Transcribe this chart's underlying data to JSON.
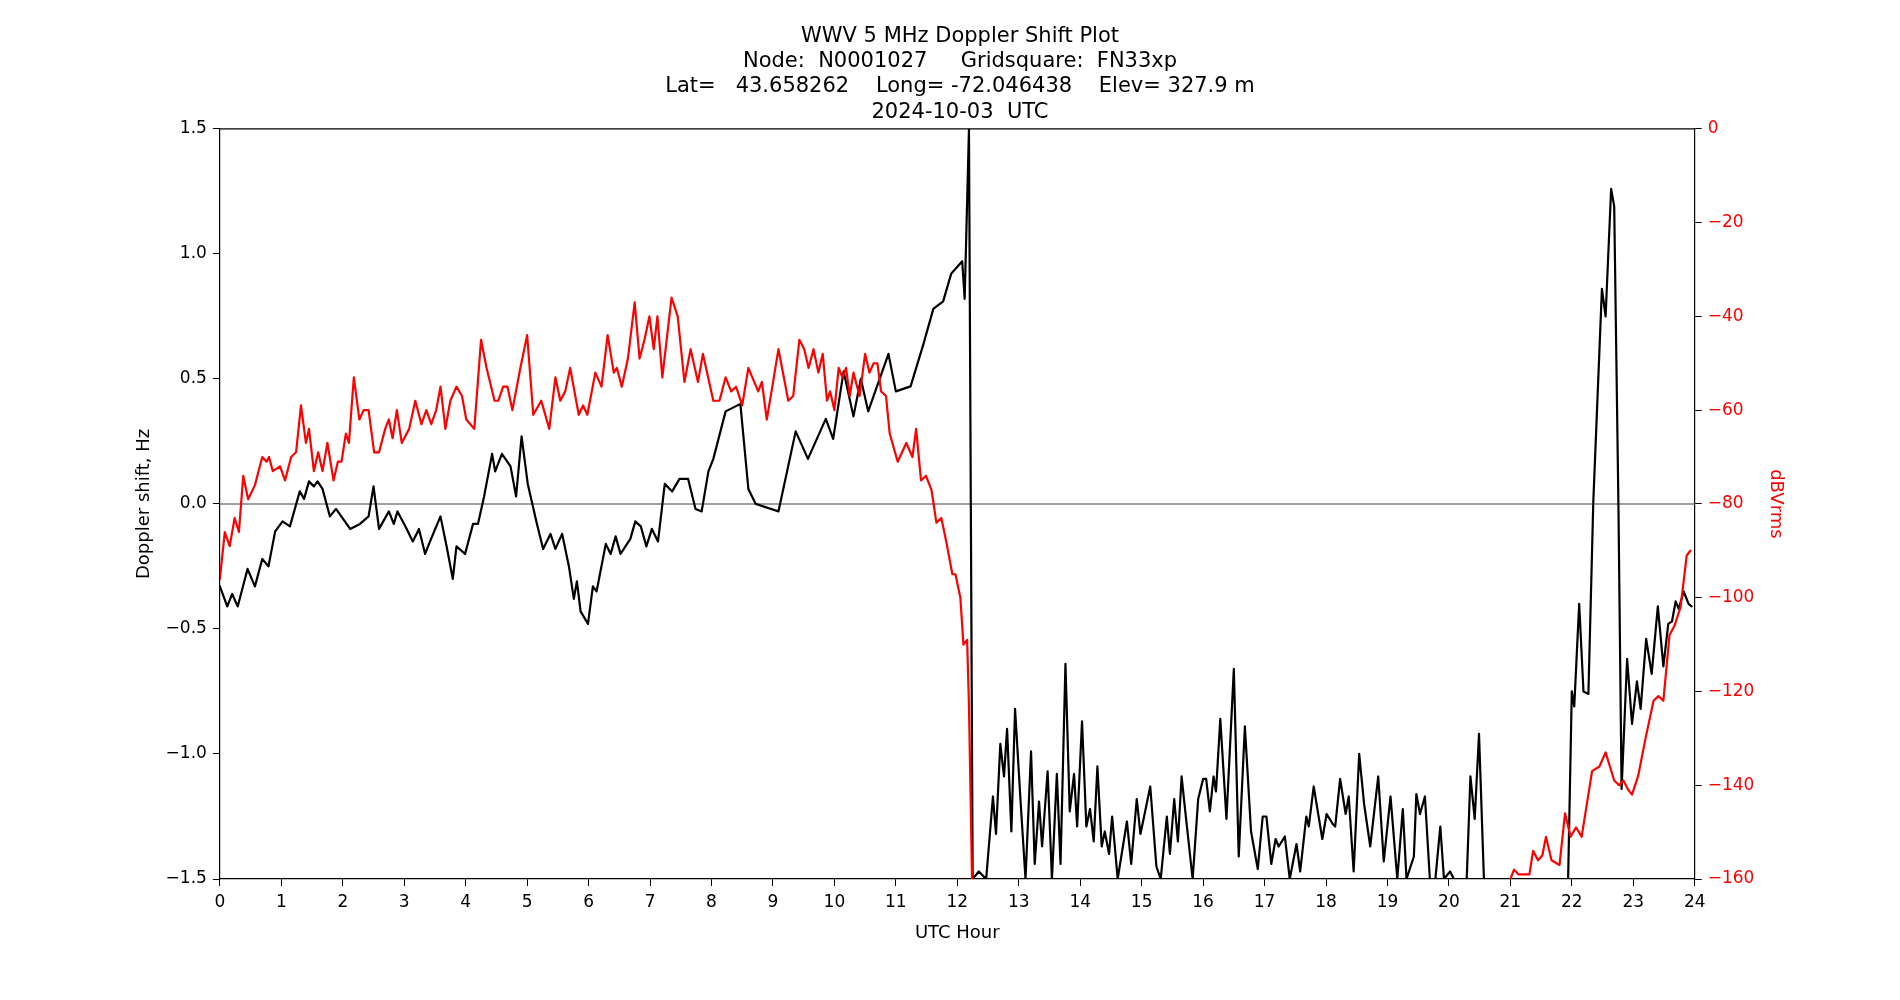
{
  "chart_data": {
    "type": "line",
    "title": "WWV 5 MHz Doppler Shift Plot",
    "subtitle": "Node:  N0001027     Gridsquare:  FN33xp\nLat=   43.658262    Long= -72.046438    Elev= 327.9 m\n2024-10-03  UTC",
    "xlabel": "UTC Hour",
    "ylabel": "Doppler shift, Hz",
    "y2label": "dBVrms",
    "xlim": [
      0,
      24
    ],
    "xticks": [
      0,
      1,
      2,
      3,
      4,
      5,
      6,
      7,
      8,
      9,
      10,
      11,
      12,
      13,
      14,
      15,
      16,
      17,
      18,
      19,
      20,
      21,
      22,
      23,
      24
    ],
    "ylim": [
      -1.5,
      1.5
    ],
    "yticks": [
      {
        "value": -1.5,
        "label": "−1.5"
      },
      {
        "value": -1,
        "label": "−1.0"
      },
      {
        "value": -0.5,
        "label": "−0.5"
      },
      {
        "value": 0,
        "label": "0.0"
      },
      0.5,
      {
        "value": 1,
        "label": "1.0"
      },
      1.5
    ],
    "y2lim": [
      -160,
      0
    ],
    "y2ticks": [
      {
        "value": -160,
        "label": "−160"
      },
      {
        "value": -140,
        "label": "−140"
      },
      {
        "value": -120,
        "label": "−120"
      },
      {
        "value": -100,
        "label": "−100"
      },
      {
        "value": -80,
        "label": "−80"
      },
      {
        "value": -60,
        "label": "−60"
      },
      {
        "value": -40,
        "label": "−40"
      },
      {
        "value": -20,
        "label": "−20"
      },
      0
    ],
    "grid": false,
    "legend": false,
    "marker": "none",
    "line_style": "solid",
    "ref_lines": [
      {
        "axis": "y",
        "value": 0,
        "color": "#808080"
      }
    ],
    "series": [
      {
        "color": "#ff0000",
        "axis": "y2",
        "x": [
          0,
          0.08,
          0.16,
          0.24,
          0.31,
          0.38,
          0.46,
          0.57,
          0.69,
          0.76,
          0.8,
          0.86,
          0.98,
          1.06,
          1.16,
          1.24,
          1.32,
          1.4,
          1.45,
          1.53,
          1.6,
          1.67,
          1.75,
          1.85,
          1.92,
          1.98,
          2.05,
          2.1,
          2.18,
          2.27,
          2.34,
          2.42,
          2.51,
          2.59,
          2.69,
          2.75,
          2.81,
          2.88,
          2.96,
          3.08,
          3.18,
          3.28,
          3.36,
          3.44,
          3.52,
          3.59,
          3.67,
          3.75,
          3.85,
          3.94,
          4.01,
          4.14,
          4.25,
          4.34,
          4.47,
          4.53,
          4.61,
          4.68,
          4.76,
          4.89,
          5.0,
          5.1,
          5.23,
          5.36,
          5.46,
          5.54,
          5.62,
          5.7,
          5.84,
          5.91,
          5.98,
          6.11,
          6.21,
          6.31,
          6.41,
          6.46,
          6.54,
          6.64,
          6.75,
          6.83,
          6.91,
          6.99,
          7.06,
          7.12,
          7.2,
          7.35,
          7.45,
          7.56,
          7.66,
          7.78,
          7.86,
          8.03,
          8.13,
          8.23,
          8.32,
          8.4,
          8.5,
          8.6,
          8.76,
          8.82,
          8.9,
          8.99,
          9.09,
          9.25,
          9.33,
          9.43,
          9.51,
          9.58,
          9.66,
          9.74,
          9.81,
          9.88,
          9.93,
          10.0,
          10.07,
          10.13,
          10.19,
          10.25,
          10.31,
          10.41,
          10.5,
          10.57,
          10.64,
          10.7,
          10.76,
          10.84,
          10.9,
          11.03,
          11.17,
          11.27,
          11.33,
          11.41,
          11.49,
          11.58,
          11.66,
          11.74,
          11.82,
          11.92,
          11.97,
          12.05,
          12.1,
          12.16,
          12.19,
          12.24,
          16.0,
          21.0,
          21.06,
          21.13,
          21.21,
          21.31,
          21.37,
          21.45,
          21.52,
          21.58,
          21.67,
          21.8,
          21.89,
          21.98,
          22.07,
          22.16,
          22.33,
          22.45,
          22.55,
          22.69,
          22.77,
          22.84,
          22.92,
          22.98,
          23.08,
          23.2,
          23.33,
          23.41,
          23.49,
          23.59,
          23.67,
          23.77,
          23.87,
          23.93
        ],
        "values": [
          -96,
          -86,
          -89,
          -83,
          -86,
          -74,
          -79,
          -76,
          -70,
          -71,
          -70,
          -73,
          -72,
          -75,
          -70,
          -69,
          -59,
          -67,
          -64,
          -73,
          -69,
          -73,
          -67,
          -75,
          -71,
          -71,
          -65,
          -67,
          -53,
          -62,
          -60,
          -60,
          -69,
          -69,
          -64,
          -62,
          -66,
          -60,
          -67,
          -64,
          -58,
          -63,
          -60,
          -63,
          -60,
          -55,
          -64,
          -58,
          -55,
          -57,
          -62,
          -64,
          -45,
          -51,
          -58,
          -58,
          -55,
          -55,
          -60,
          -51,
          -44,
          -61,
          -58,
          -64,
          -53,
          -58,
          -56,
          -51,
          -61,
          -59,
          -61,
          -52,
          -55,
          -44,
          -52,
          -51,
          -55,
          -49,
          -37,
          -49,
          -45,
          -40,
          -47,
          -40,
          -53,
          -36,
          -40,
          -54,
          -47,
          -54,
          -48,
          -58,
          -58,
          -53,
          -56,
          -55,
          -59,
          -51,
          -56,
          -54,
          -62,
          -55,
          -47,
          -58,
          -57,
          -45,
          -47,
          -51,
          -47,
          -52,
          -48,
          -58,
          -56,
          -60,
          -51,
          -53,
          -51,
          -57,
          -52,
          -57,
          -48,
          -52,
          -50,
          -50,
          -56,
          -57,
          -65,
          -71,
          -67,
          -70,
          -64,
          -75,
          -74,
          -77,
          -84,
          -83,
          -88,
          -95,
          -95,
          -100,
          -110,
          -109,
          -123,
          -160,
          null,
          -160,
          -158,
          -159,
          -159,
          -159,
          -154,
          -156,
          -155,
          -151,
          -156,
          -157,
          -146,
          -151,
          -149,
          -151,
          -137,
          -136,
          -133,
          -139,
          -140,
          -139,
          -141,
          -142,
          -138,
          -130,
          -122,
          -121,
          -122,
          -108,
          -106,
          -102,
          -91,
          -90
        ]
      },
      {
        "color": "#000000",
        "axis": "y",
        "x": [
          0,
          0.12,
          0.2,
          0.29,
          0.45,
          0.57,
          0.69,
          0.79,
          0.9,
          1.02,
          1.14,
          1.3,
          1.37,
          1.45,
          1.53,
          1.59,
          1.67,
          1.79,
          1.89,
          2.12,
          2.28,
          2.42,
          2.5,
          2.59,
          2.75,
          2.83,
          2.89,
          3.02,
          3.14,
          3.24,
          3.34,
          3.42,
          3.59,
          3.69,
          3.79,
          3.85,
          3.99,
          4.12,
          4.2,
          4.3,
          4.43,
          4.48,
          4.59,
          4.73,
          4.82,
          4.91,
          5.01,
          5.15,
          5.26,
          5.38,
          5.46,
          5.57,
          5.68,
          5.76,
          5.81,
          5.87,
          5.99,
          6.07,
          6.13,
          6.28,
          6.36,
          6.44,
          6.52,
          6.68,
          6.76,
          6.85,
          6.94,
          7.03,
          7.13,
          7.24,
          7.36,
          7.48,
          7.62,
          7.74,
          7.84,
          7.95,
          8.03,
          8.23,
          8.47,
          8.6,
          8.72,
          9.09,
          9.37,
          9.57,
          9.86,
          9.98,
          10.15,
          10.31,
          10.43,
          10.55,
          10.88,
          11.0,
          11.24,
          11.45,
          11.61,
          11.77,
          11.9,
          12.08,
          12.12,
          12.19,
          12.25,
          12.35,
          12.47,
          12.58,
          12.63,
          12.7,
          12.76,
          12.81,
          12.88,
          12.94,
          13.03,
          13.11,
          13.2,
          13.26,
          13.33,
          13.38,
          13.47,
          13.54,
          13.62,
          13.68,
          13.76,
          13.83,
          13.9,
          13.95,
          14.03,
          14.1,
          14.16,
          14.22,
          14.28,
          14.35,
          14.4,
          14.47,
          14.52,
          14.61,
          14.76,
          14.83,
          14.92,
          14.98,
          15.04,
          15.14,
          15.24,
          15.31,
          15.41,
          15.46,
          15.53,
          15.59,
          15.65,
          15.71,
          15.83,
          15.92,
          16.0,
          16.05,
          16.11,
          16.17,
          16.21,
          16.28,
          16.38,
          16.5,
          16.58,
          16.68,
          16.78,
          16.89,
          16.97,
          17.03,
          17.11,
          17.18,
          17.23,
          17.33,
          17.41,
          17.52,
          17.58,
          17.68,
          17.72,
          17.8,
          17.94,
          18.01,
          18.11,
          18.15,
          18.23,
          18.32,
          18.37,
          18.45,
          18.54,
          18.62,
          18.72,
          18.85,
          18.94,
          19.05,
          19.16,
          19.25,
          19.31,
          19.43,
          19.47,
          19.53,
          19.61,
          19.69,
          19.78,
          19.86,
          19.92,
          20.02,
          20.08,
          20.29,
          20.35,
          20.42,
          20.49,
          20.57,
          21.94,
          22.0,
          22.04,
          22.12,
          22.19,
          22.27,
          22.35,
          22.49,
          22.55,
          22.64,
          22.69,
          22.76,
          22.81,
          22.9,
          22.98,
          23.06,
          23.12,
          23.21,
          23.3,
          23.4,
          23.49,
          23.57,
          23.63,
          23.69,
          23.74,
          23.82,
          23.9,
          23.95
        ],
        "values": [
          -0.33,
          -0.41,
          -0.36,
          -0.41,
          -0.26,
          -0.33,
          -0.22,
          -0.25,
          -0.11,
          -0.07,
          -0.09,
          0.05,
          0.02,
          0.09,
          0.07,
          0.09,
          0.06,
          -0.05,
          -0.02,
          -0.1,
          -0.08,
          -0.05,
          0.07,
          -0.1,
          -0.03,
          -0.08,
          -0.03,
          -0.09,
          -0.15,
          -0.1,
          -0.2,
          -0.15,
          -0.05,
          -0.17,
          -0.3,
          -0.17,
          -0.2,
          -0.08,
          -0.08,
          0.03,
          0.2,
          0.13,
          0.2,
          0.15,
          0.03,
          0.27,
          0.08,
          -0.07,
          -0.18,
          -0.12,
          -0.18,
          -0.12,
          -0.25,
          -0.38,
          -0.31,
          -0.43,
          -0.48,
          -0.33,
          -0.35,
          -0.16,
          -0.2,
          -0.13,
          -0.2,
          -0.14,
          -0.07,
          -0.09,
          -0.17,
          -0.1,
          -0.15,
          0.08,
          0.05,
          0.1,
          0.1,
          -0.02,
          -0.03,
          0.13,
          0.18,
          0.37,
          0.4,
          0.06,
          0.0,
          -0.03,
          0.29,
          0.18,
          0.34,
          0.26,
          0.53,
          0.35,
          0.5,
          0.37,
          0.6,
          0.45,
          0.47,
          0.64,
          0.78,
          0.81,
          0.92,
          0.97,
          0.82,
          1.5,
          -1.5,
          -1.47,
          -1.5,
          -1.17,
          -1.32,
          -0.96,
          -1.09,
          -0.9,
          -1.31,
          -0.82,
          -1.19,
          -1.5,
          -0.99,
          -1.44,
          -1.19,
          -1.37,
          -1.07,
          -1.5,
          -1.08,
          -1.44,
          -0.64,
          -1.23,
          -1.08,
          -1.29,
          -0.87,
          -1.29,
          -1.22,
          -1.35,
          -1.05,
          -1.37,
          -1.31,
          -1.4,
          -1.25,
          -1.5,
          -1.27,
          -1.44,
          -1.18,
          -1.32,
          -1.25,
          -1.13,
          -1.45,
          -1.5,
          -1.25,
          -1.4,
          -1.18,
          -1.35,
          -1.09,
          -1.23,
          -1.5,
          -1.18,
          -1.1,
          -1.1,
          -1.23,
          -1.09,
          -1.15,
          -0.86,
          -1.26,
          -0.66,
          -1.41,
          -0.89,
          -1.31,
          -1.46,
          -1.25,
          -1.25,
          -1.44,
          -1.34,
          -1.37,
          -1.33,
          -1.5,
          -1.36,
          -1.47,
          -1.25,
          -1.29,
          -1.13,
          -1.34,
          -1.24,
          -1.28,
          -1.29,
          -1.1,
          -1.24,
          -1.17,
          -1.47,
          -1.0,
          -1.2,
          -1.37,
          -1.09,
          -1.43,
          -1.17,
          -1.5,
          -1.22,
          -1.5,
          -1.41,
          -1.16,
          -1.24,
          -1.17,
          -1.5,
          -1.5,
          -1.29,
          -1.5,
          -1.47,
          -1.5,
          -1.5,
          -1.09,
          -1.26,
          -0.92,
          -1.5,
          -1.5,
          -0.75,
          -0.81,
          -0.4,
          -0.75,
          -0.76,
          0.01,
          0.86,
          0.75,
          1.26,
          1.19,
          -0.03,
          -1.14,
          -0.62,
          -0.88,
          -0.71,
          -0.82,
          -0.54,
          -0.68,
          -0.41,
          -0.65,
          -0.48,
          -0.47,
          -0.39,
          -0.42,
          -0.35,
          -0.4,
          -0.41
        ]
      }
    ]
  }
}
